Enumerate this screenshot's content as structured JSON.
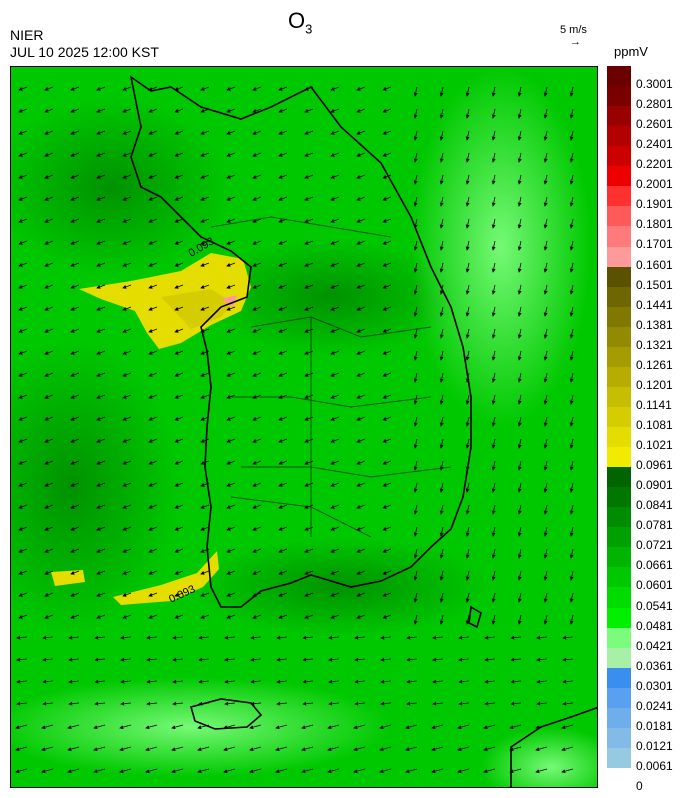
{
  "header": {
    "pollutant": "O",
    "pollutant_sub": "3",
    "source": "NIER",
    "datetime": "JUL 10 2025 12:00 KST",
    "wind_scale": "5 m/s",
    "wind_scale_arrow": "→",
    "unit": "ppmV"
  },
  "legend": {
    "labels": [
      "0.3001",
      "0.2801",
      "0.2601",
      "0.2401",
      "0.2201",
      "0.2001",
      "0.1901",
      "0.1801",
      "0.1701",
      "0.1601",
      "0.1501",
      "0.1441",
      "0.1381",
      "0.1321",
      "0.1261",
      "0.1201",
      "0.1141",
      "0.1081",
      "0.1021",
      "0.0961",
      "0.0901",
      "0.0841",
      "0.0781",
      "0.0721",
      "0.0661",
      "0.0601",
      "0.0541",
      "0.0481",
      "0.0421",
      "0.0361",
      "0.0301",
      "0.0241",
      "0.0181",
      "0.0121",
      "0.0061",
      "0"
    ],
    "colors": [
      "#6b0000",
      "#7a0000",
      "#990000",
      "#b30000",
      "#cc0000",
      "#ee0000",
      "#ff3030",
      "#ff5a5a",
      "#ff7a7a",
      "#ff9a9a",
      "#5a5200",
      "#6e6600",
      "#807800",
      "#928a00",
      "#a49c00",
      "#b6ad00",
      "#c6be00",
      "#d6cd00",
      "#e6dd00",
      "#f2ea00",
      "#006400",
      "#007800",
      "#008c00",
      "#00a000",
      "#00b400",
      "#00c800",
      "#00dc00",
      "#00f000",
      "#7cfc7c",
      "#a8f0a8",
      "#3a8ef0",
      "#5aa0f0",
      "#6eaeea",
      "#82bce6",
      "#96cae2"
    ]
  },
  "map": {
    "contour_labels": [
      "0.093",
      "0.093"
    ],
    "base_color": "#00c800"
  }
}
